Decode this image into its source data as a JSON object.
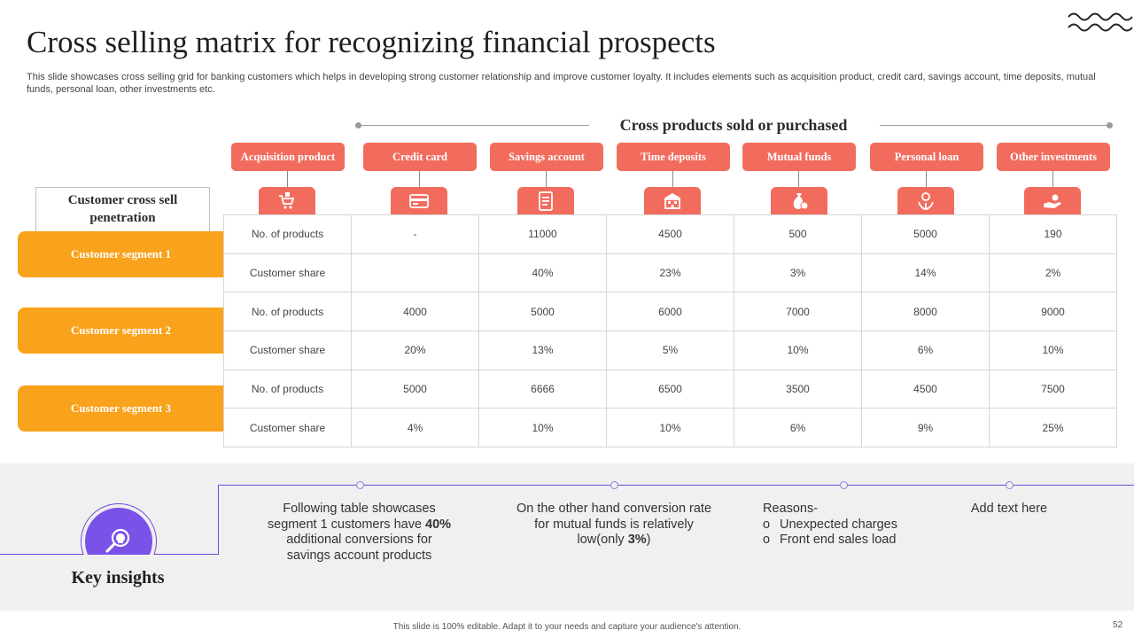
{
  "slide": {
    "title": "Cross selling matrix for recognizing financial prospects",
    "description": "This slide showcases cross selling grid for banking customers which helps in developing strong customer relationship and improve customer loyalty. It includes elements such as acquisition product, credit card, savings account, time deposits, mutual funds, personal loan, other investments etc."
  },
  "matrix": {
    "header_title": "Cross products sold or purchased",
    "corner_label": "Customer cross sell penetration",
    "columns": [
      {
        "label": "Acquisition product",
        "icon": "shopping-icon"
      },
      {
        "label": "Credit card",
        "icon": "credit-card-icon"
      },
      {
        "label": "Savings account",
        "icon": "document-list-icon"
      },
      {
        "label": "Time deposits",
        "icon": "bank-icon"
      },
      {
        "label": "Mutual funds",
        "icon": "money-bag-icon"
      },
      {
        "label": "Personal loan",
        "icon": "hand-dollar-icon"
      },
      {
        "label": "Other investments",
        "icon": "hand-coin-icon"
      }
    ],
    "segments": [
      {
        "label": "Customer segment 1"
      },
      {
        "label": "Customer segment 2"
      },
      {
        "label": "Customer segment 3"
      }
    ],
    "rows": [
      [
        "No. of products",
        "-",
        "11000",
        "4500",
        "500",
        "5000",
        "190"
      ],
      [
        "Customer share",
        "",
        "40%",
        "23%",
        "3%",
        "14%",
        "2%"
      ],
      [
        "No. of products",
        "4000",
        "5000",
        "6000",
        "7000",
        "8000",
        "9000"
      ],
      [
        "Customer share",
        "20%",
        "13%",
        "5%",
        "10%",
        "6%",
        "10%"
      ],
      [
        "No. of products",
        "5000",
        "6666",
        "6500",
        "3500",
        "4500",
        "7500"
      ],
      [
        "Customer share",
        "4%",
        "10%",
        "10%",
        "6%",
        "9%",
        "25%"
      ]
    ]
  },
  "insights": {
    "title": "Key insights",
    "icon": "lightbulb-magnifier-icon",
    "items": [
      {
        "before": "Following table showcases segment 1 customers have ",
        "bold": "40%",
        "after": " additional conversions for savings account products"
      },
      {
        "before": "On the other hand conversion rate for mutual funds is relatively low(only ",
        "bold": "3%",
        "after": ")"
      },
      {
        "heading": "Reasons-",
        "bullets": [
          "Unexpected charges",
          "Front end sales load"
        ]
      },
      {
        "text": "Add text here"
      }
    ]
  },
  "footer": {
    "note": "This slide is 100% editable. Adapt it to your needs and capture your audience's attention.",
    "page_number": "52"
  },
  "colors": {
    "coral": "#f26c5e",
    "orange": "#f9a21b",
    "purple": "#7b52e8"
  }
}
